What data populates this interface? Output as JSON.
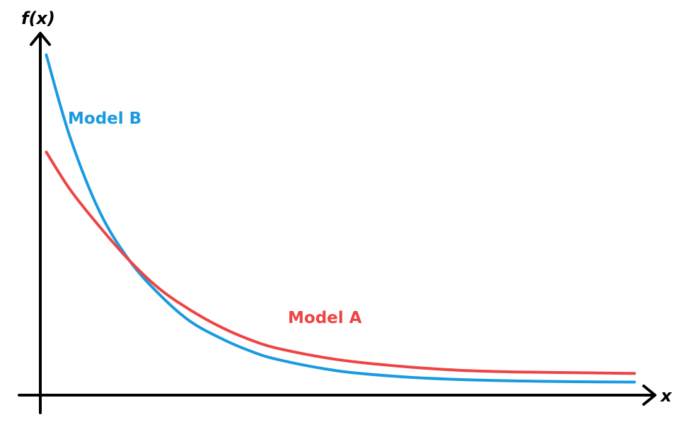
{
  "chart_data": {
    "type": "line",
    "xlabel": "x",
    "ylabel": "f(x)",
    "xlim": [
      0,
      10
    ],
    "ylim": [
      0,
      10
    ],
    "grid": false,
    "legend": "inline labels",
    "series": [
      {
        "name": "Model B",
        "color": "#1a9ae0",
        "x": [
          0.1,
          0.5,
          1.0,
          1.5,
          2.0,
          2.5,
          3.0,
          3.5,
          4.0,
          5.0,
          6.0,
          7.0,
          8.0,
          9.0,
          10.0
        ],
        "y": [
          9.1,
          6.9,
          4.9,
          3.6,
          2.7,
          2.0,
          1.55,
          1.2,
          0.95,
          0.65,
          0.5,
          0.42,
          0.38,
          0.36,
          0.35
        ]
      },
      {
        "name": "Model A",
        "color": "#ee4444",
        "x": [
          0.1,
          0.5,
          1.0,
          1.5,
          2.0,
          2.5,
          3.0,
          3.5,
          4.0,
          5.0,
          6.0,
          7.0,
          8.0,
          9.0,
          10.0
        ],
        "y": [
          6.5,
          5.5,
          4.5,
          3.6,
          2.85,
          2.3,
          1.85,
          1.5,
          1.25,
          0.95,
          0.78,
          0.67,
          0.62,
          0.6,
          0.58
        ]
      }
    ]
  }
}
